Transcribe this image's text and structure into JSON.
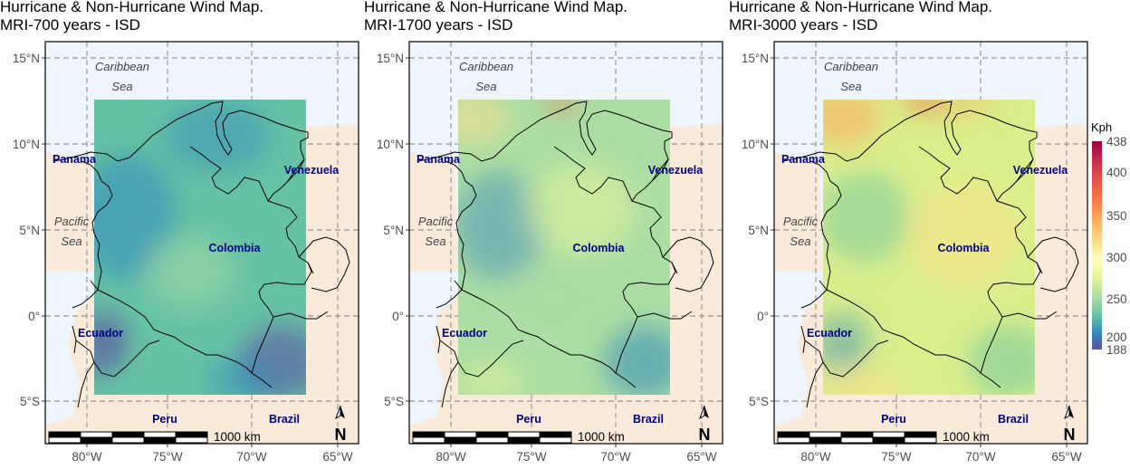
{
  "panels": [
    {
      "title_line1": "Hurricane & Non-Hurricane Wind Map.",
      "title_line2": "MRI-700 years - ISD"
    },
    {
      "title_line1": "Hurricane & Non-Hurricane Wind Map.",
      "title_line2": "MRI-1700 years - ISD"
    },
    {
      "title_line1": "Hurricane & Non-Hurricane Wind Map.",
      "title_line2": "MRI-3000 years - ISD"
    }
  ],
  "map": {
    "lat_ticks": [
      "15°N",
      "10°N",
      "5°N",
      "0°",
      "5°S"
    ],
    "lon_ticks": [
      "80°W",
      "75°W",
      "70°W",
      "65°W"
    ],
    "countries": [
      "Panama",
      "Venezuela",
      "Colombia",
      "Ecuador",
      "Peru",
      "Brazil"
    ],
    "seas": {
      "caribbean_1": "Caribbean",
      "caribbean_2": "Sea",
      "pacific_1": "Pacific",
      "pacific_2": "Sea"
    },
    "scale_label": "1000 km",
    "north_label": "N"
  },
  "legend": {
    "title": "Kph",
    "labels": [
      "438",
      "400",
      "350",
      "300",
      "250",
      "200",
      "188"
    ],
    "colors": [
      "#9e0142",
      "#f46d43",
      "#fee08b",
      "#ffffbf",
      "#abdda4",
      "#3288bd",
      "#5e4fa2"
    ]
  },
  "colors": {
    "ocean": "#eef5fc",
    "land": "#f9eada",
    "grid": "#7f7f7f"
  }
}
